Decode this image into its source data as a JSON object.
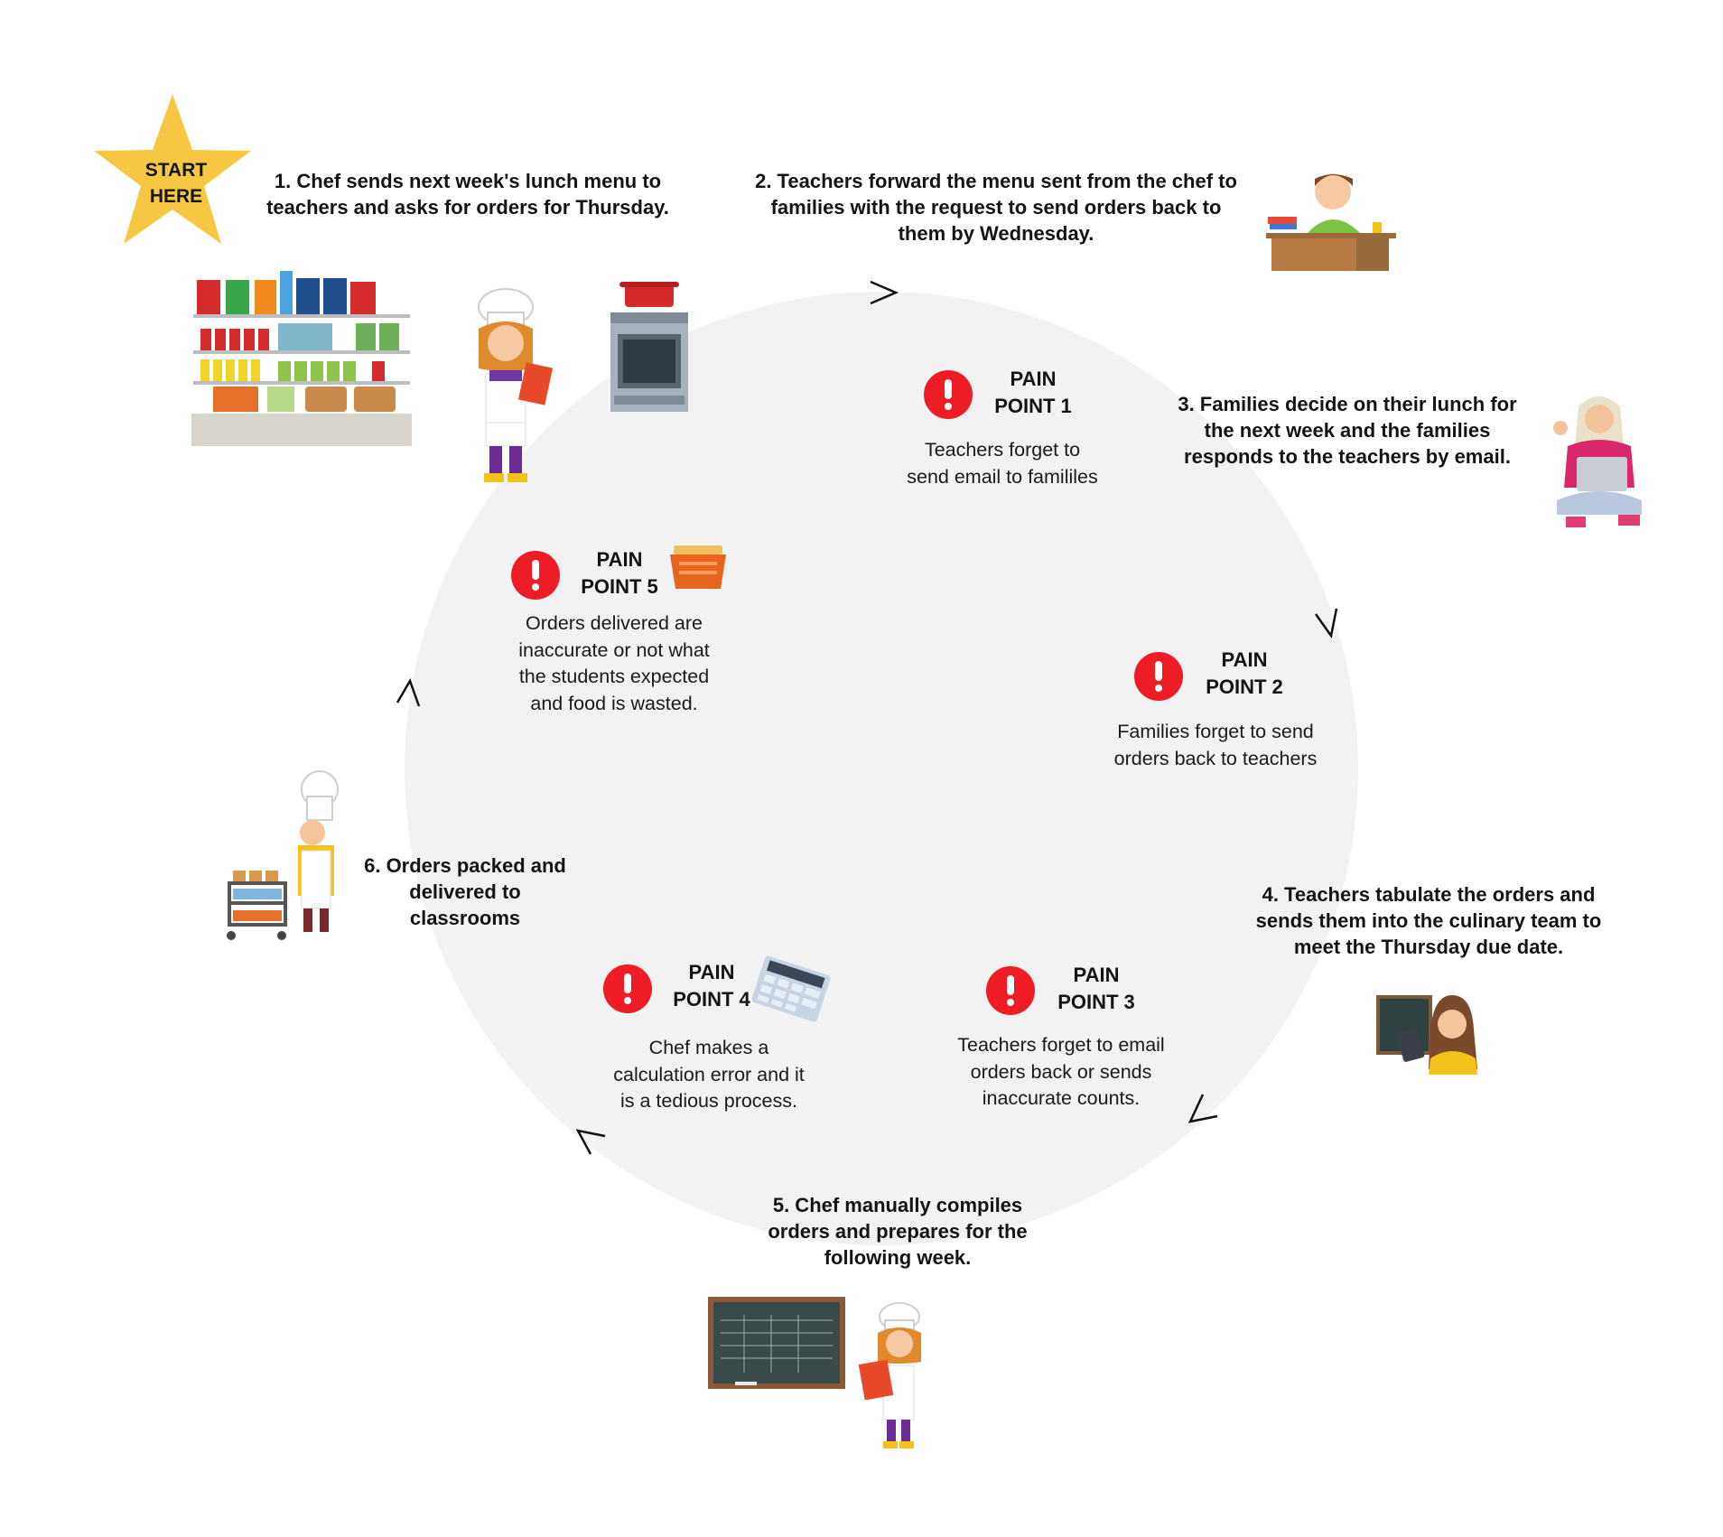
{
  "start_badge": {
    "line1": "START",
    "line2": "HERE"
  },
  "steps": [
    {
      "id": 1,
      "lines": [
        "1. Chef sends next week's lunch menu to",
        "teachers and asks for orders for Thursday."
      ]
    },
    {
      "id": 2,
      "lines": [
        "2. Teachers forward the menu sent from the chef to",
        "families with the request to send orders back to",
        "them by Wednesday."
      ]
    },
    {
      "id": 3,
      "lines": [
        "3. Families decide on their lunch for",
        "the next week and the families",
        "responds to the teachers by email."
      ]
    },
    {
      "id": 4,
      "lines": [
        "4. Teachers tabulate the orders and",
        "sends them into the culinary team to",
        "meet the Thursday due date."
      ]
    },
    {
      "id": 5,
      "lines": [
        "5. Chef manually compiles",
        "orders and prepares for the",
        "following week."
      ]
    },
    {
      "id": 6,
      "lines": [
        "6. Orders packed and",
        "delivered to",
        "classrooms"
      ]
    }
  ],
  "pain_points": [
    {
      "id": 1,
      "title": [
        "PAIN",
        "POINT 1"
      ],
      "desc": [
        "Teachers forget to",
        "send email to famililes"
      ]
    },
    {
      "id": 2,
      "title": [
        "PAIN",
        "POINT 2"
      ],
      "desc": [
        "Families forget to send",
        "orders back to teachers"
      ]
    },
    {
      "id": 3,
      "title": [
        "PAIN",
        "POINT 3"
      ],
      "desc": [
        "Teachers forget to email",
        "orders back or sends",
        "inaccurate counts."
      ]
    },
    {
      "id": 4,
      "title": [
        "PAIN",
        "POINT 4"
      ],
      "desc": [
        "Chef makes a",
        "calculation error and it",
        "is a tedious process."
      ]
    },
    {
      "id": 5,
      "title": [
        "PAIN",
        "POINT 5"
      ],
      "desc": [
        "Orders delivered are",
        "inaccurate or not what",
        "the students expected",
        "and food is wasted."
      ]
    }
  ],
  "icons": [
    "star-badge",
    "grocery-shelf",
    "chef-with-clipboard",
    "stove-with-pot",
    "student-at-desk",
    "woman-with-laptop",
    "teacher-with-tablet",
    "chalkboard",
    "chef-with-food-cart",
    "food-basket",
    "calculator",
    "alert-icon",
    "direction-arrow"
  ],
  "colors": {
    "circle": "#f2f2f2",
    "alert": "#ee1c24",
    "star": "#f7c744",
    "arrow": "#111111",
    "text": "#141414"
  }
}
